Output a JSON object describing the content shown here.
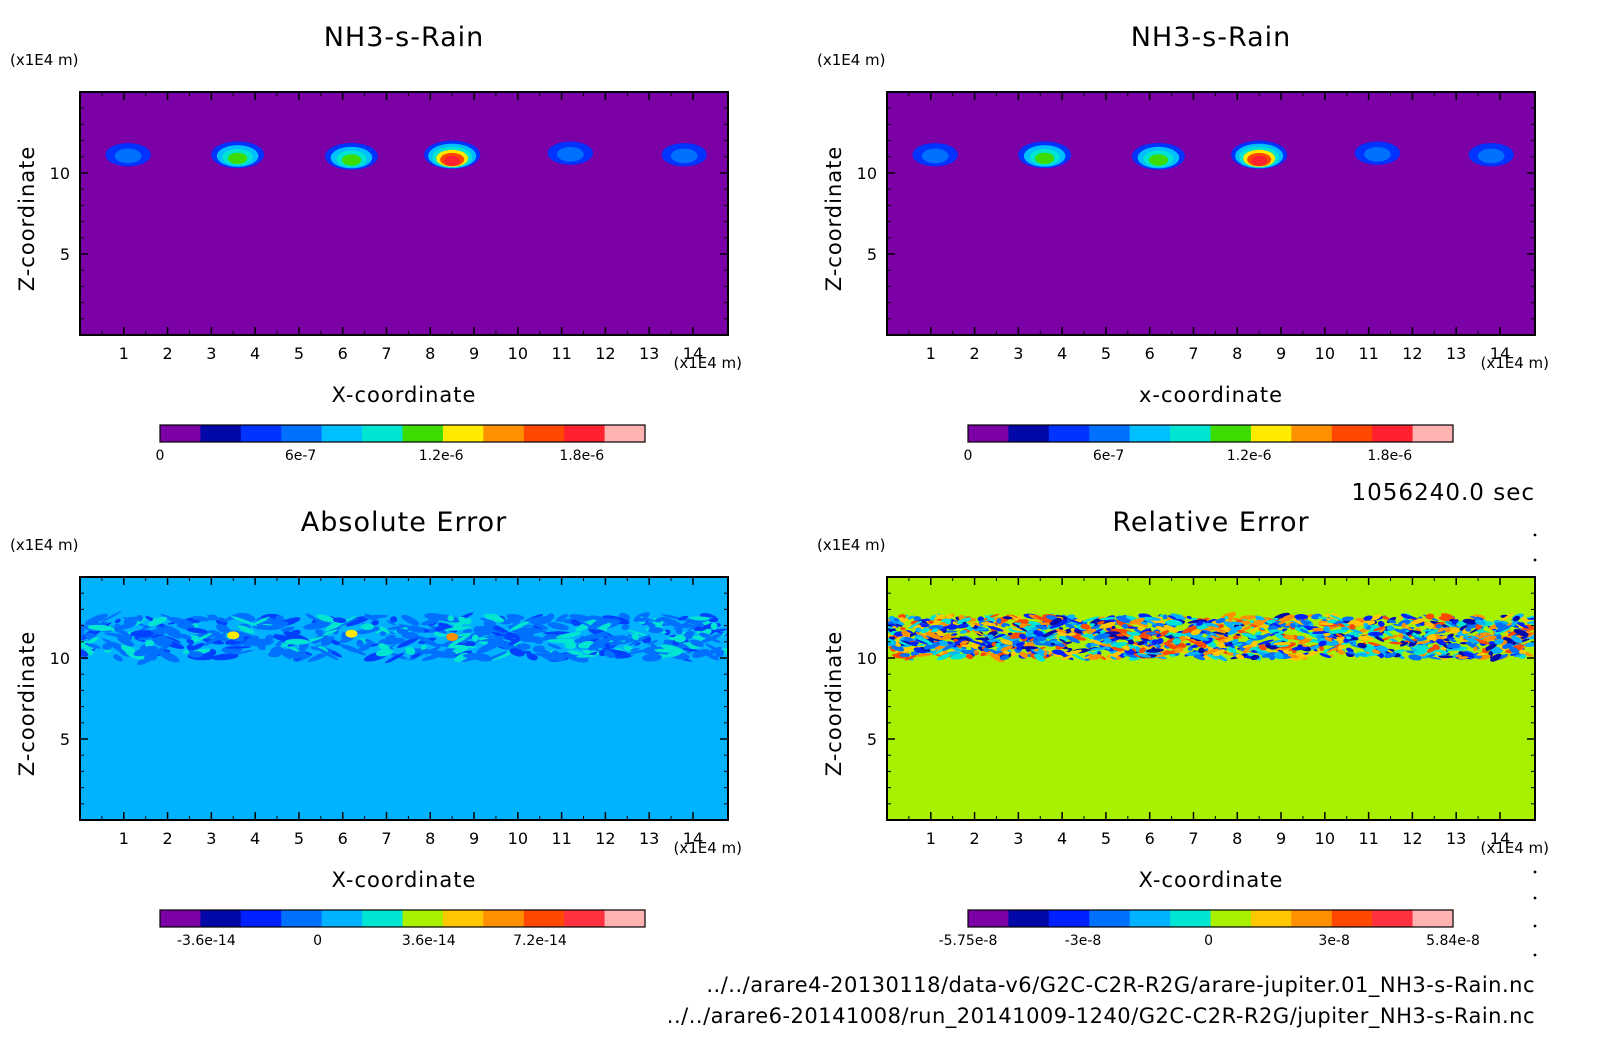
{
  "time_label": "1056240.0 sec",
  "files": [
    "../../arare4-20130118/data-v6/G2C-C2R-R2G/arare-jupiter.01_NH3-s-Rain.nc",
    "../../arare6-20141008/run_20141009-1240/G2C-C2R-R2G/jupiter_NH3-s-Rain.nc"
  ],
  "chart_data": [
    {
      "type": "heatmap",
      "title": "NH3-s-Rain",
      "xlabel": "X-coordinate",
      "ylabel": "Z-coordinate",
      "xunit": "(x1E4 m)",
      "yunit": "(x1E4 m)",
      "xlim": [
        0,
        14.8
      ],
      "ylim": [
        0,
        15
      ],
      "xticks": [
        "1",
        "2",
        "3",
        "4",
        "5",
        "6",
        "7",
        "8",
        "9",
        "10",
        "11",
        "12",
        "13",
        "14"
      ],
      "yticks": [
        "5",
        "10"
      ],
      "background": "#7b00a6",
      "blobs": [
        {
          "x": 1.1,
          "z": 11.2,
          "peak": 6e-07
        },
        {
          "x": 3.6,
          "z": 11.2,
          "peak": 1.2e-06
        },
        {
          "x": 6.2,
          "z": 11.1,
          "peak": 1.2e-06
        },
        {
          "x": 8.5,
          "z": 11.2,
          "peak": 1.8e-06
        },
        {
          "x": 11.2,
          "z": 11.3,
          "peak": 6e-07
        },
        {
          "x": 13.8,
          "z": 11.2,
          "peak": 6e-07
        }
      ],
      "colorbar": {
        "colors": [
          "#7b00a6",
          "#0009a8",
          "#0033ff",
          "#0070ff",
          "#00bfff",
          "#00e5d2",
          "#3ddc00",
          "#ffea00",
          "#ff9000",
          "#ff4800",
          "#ff2030",
          "#ffb2b2"
        ],
        "tick_labels": [
          "0",
          "6e-7",
          "1.2e-6",
          "1.8e-6"
        ],
        "tick_values": [
          0,
          6e-07,
          1.2e-06,
          1.8e-06
        ],
        "range": [
          0,
          2.07e-06
        ]
      }
    },
    {
      "type": "heatmap",
      "title": "NH3-s-Rain",
      "xlabel": "x-coordinate",
      "ylabel": "Z-coordinate",
      "xunit": "(x1E4 m)",
      "yunit": "(x1E4 m)",
      "xlim": [
        0,
        14.8
      ],
      "ylim": [
        0,
        15
      ],
      "xticks": [
        "1",
        "2",
        "3",
        "4",
        "5",
        "6",
        "7",
        "8",
        "9",
        "10",
        "11",
        "12",
        "13",
        "14"
      ],
      "yticks": [
        "5",
        "10"
      ],
      "background": "#7b00a6",
      "blobs": [
        {
          "x": 1.1,
          "z": 11.2,
          "peak": 6e-07
        },
        {
          "x": 3.6,
          "z": 11.2,
          "peak": 1.2e-06
        },
        {
          "x": 6.2,
          "z": 11.1,
          "peak": 1.2e-06
        },
        {
          "x": 8.5,
          "z": 11.2,
          "peak": 1.8e-06
        },
        {
          "x": 11.2,
          "z": 11.3,
          "peak": 6e-07
        },
        {
          "x": 13.8,
          "z": 11.2,
          "peak": 6e-07
        }
      ],
      "colorbar": {
        "colors": [
          "#7b00a6",
          "#0009a8",
          "#0033ff",
          "#0070ff",
          "#00bfff",
          "#00e5d2",
          "#3ddc00",
          "#ffea00",
          "#ff9000",
          "#ff4800",
          "#ff2030",
          "#ffb2b2"
        ],
        "tick_labels": [
          "0",
          "6e-7",
          "1.2e-6",
          "1.8e-6"
        ],
        "tick_values": [
          0,
          6e-07,
          1.2e-06,
          1.8e-06
        ],
        "range": [
          0,
          2.07e-06
        ]
      }
    },
    {
      "type": "heatmap",
      "title": "Absolute Error",
      "xlabel": "X-coordinate",
      "ylabel": "Z-coordinate",
      "xunit": "(x1E4 m)",
      "yunit": "(x1E4 m)",
      "xlim": [
        0,
        14.8
      ],
      "ylim": [
        0,
        15
      ],
      "xticks": [
        "1",
        "2",
        "3",
        "4",
        "5",
        "6",
        "7",
        "8",
        "9",
        "10",
        "11",
        "12",
        "13",
        "14"
      ],
      "yticks": [
        "5",
        "10"
      ],
      "background": "#00b2ff",
      "noise_band": [
        10.0,
        12.6
      ],
      "noise_colors": [
        "#0070ff",
        "#0070ff",
        "#0070ff",
        "#0040ff",
        "#00e5d2"
      ],
      "hotspots": [
        {
          "x": 3.5,
          "z": 11.4,
          "color": "#ffea00"
        },
        {
          "x": 6.2,
          "z": 11.5,
          "color": "#ffea00"
        },
        {
          "x": 8.5,
          "z": 11.3,
          "color": "#ff9000"
        },
        {
          "x": 11.2,
          "z": 10.8,
          "color": "#00e5d2"
        },
        {
          "x": 13.7,
          "z": 11.2,
          "color": "#00e5d2"
        }
      ],
      "colorbar": {
        "colors": [
          "#7b00a6",
          "#0009a8",
          "#0020ff",
          "#0070ff",
          "#00b2ff",
          "#00e5d2",
          "#a6f000",
          "#ffc800",
          "#ff9000",
          "#ff4800",
          "#ff3040",
          "#ffb2b2"
        ],
        "tick_labels": [
          "-3.6e-14",
          "0",
          "3.6e-14",
          "7.2e-14"
        ],
        "tick_values": [
          -3.6e-14,
          0,
          3.6e-14,
          7.2e-14
        ],
        "range": [
          -5.1e-14,
          1.06e-13
        ]
      }
    },
    {
      "type": "heatmap",
      "title": "Relative Error",
      "xlabel": "X-coordinate",
      "ylabel": "Z-coordinate",
      "xunit": "(x1E4 m)",
      "yunit": "(x1E4 m)",
      "xlim": [
        0,
        14.8
      ],
      "ylim": [
        0,
        15
      ],
      "xticks": [
        "1",
        "2",
        "3",
        "4",
        "5",
        "6",
        "7",
        "8",
        "9",
        "10",
        "11",
        "12",
        "13",
        "14"
      ],
      "yticks": [
        "5",
        "10"
      ],
      "background": "#a6f000",
      "noise_band": [
        10.0,
        12.6
      ],
      "noise_colors": [
        "#0070ff",
        "#00b2ff",
        "#00e5d2",
        "#ff4800",
        "#ff9000",
        "#0020ff",
        "#ffc800",
        "#0009a8"
      ],
      "colorbar": {
        "colors": [
          "#7b00a6",
          "#0009a8",
          "#0020ff",
          "#0070ff",
          "#00b2ff",
          "#00e5d2",
          "#a6f000",
          "#ffc800",
          "#ff9000",
          "#ff4800",
          "#ff3040",
          "#ffb2b2"
        ],
        "tick_labels": [
          "-5.75e-8",
          "-3e-8",
          "0",
          "3e-8",
          "5.84e-8"
        ],
        "tick_values": [
          -5.75e-08,
          -3e-08,
          0,
          3e-08,
          5.84e-08
        ],
        "range": [
          -5.75e-08,
          5.84e-08
        ]
      }
    }
  ]
}
